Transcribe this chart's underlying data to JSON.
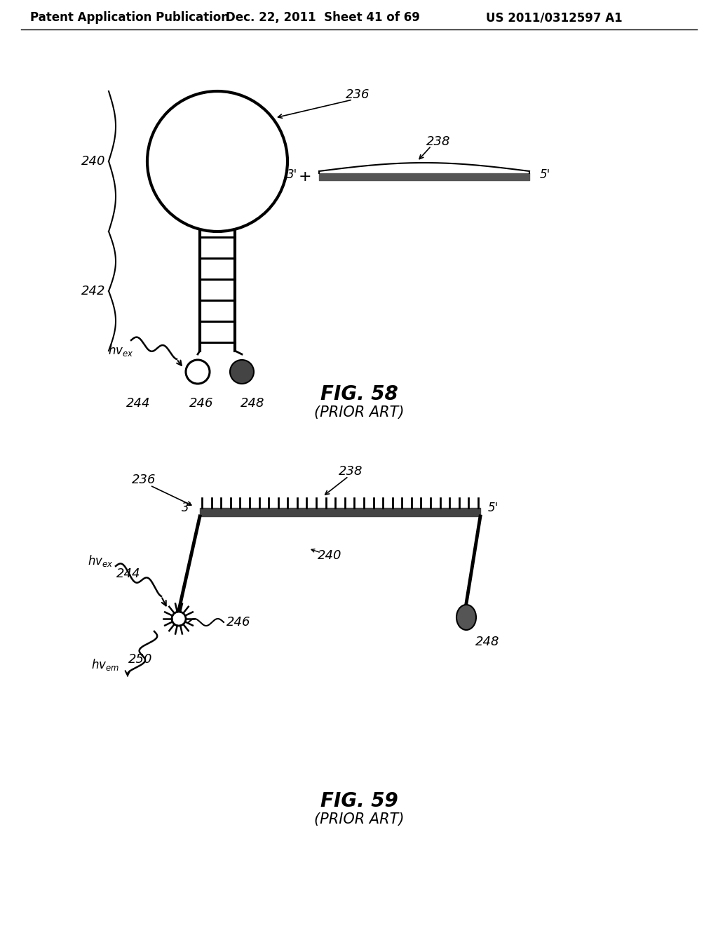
{
  "bg_color": "#ffffff",
  "header_left": "Patent Application Publication",
  "header_mid": "Dec. 22, 2011  Sheet 41 of 69",
  "header_right": "US 2011/0312597 A1",
  "fig58_title": "FIG. 58",
  "fig58_subtitle": "(PRIOR ART)",
  "fig59_title": "FIG. 59",
  "fig59_subtitle": "(PRIOR ART)"
}
